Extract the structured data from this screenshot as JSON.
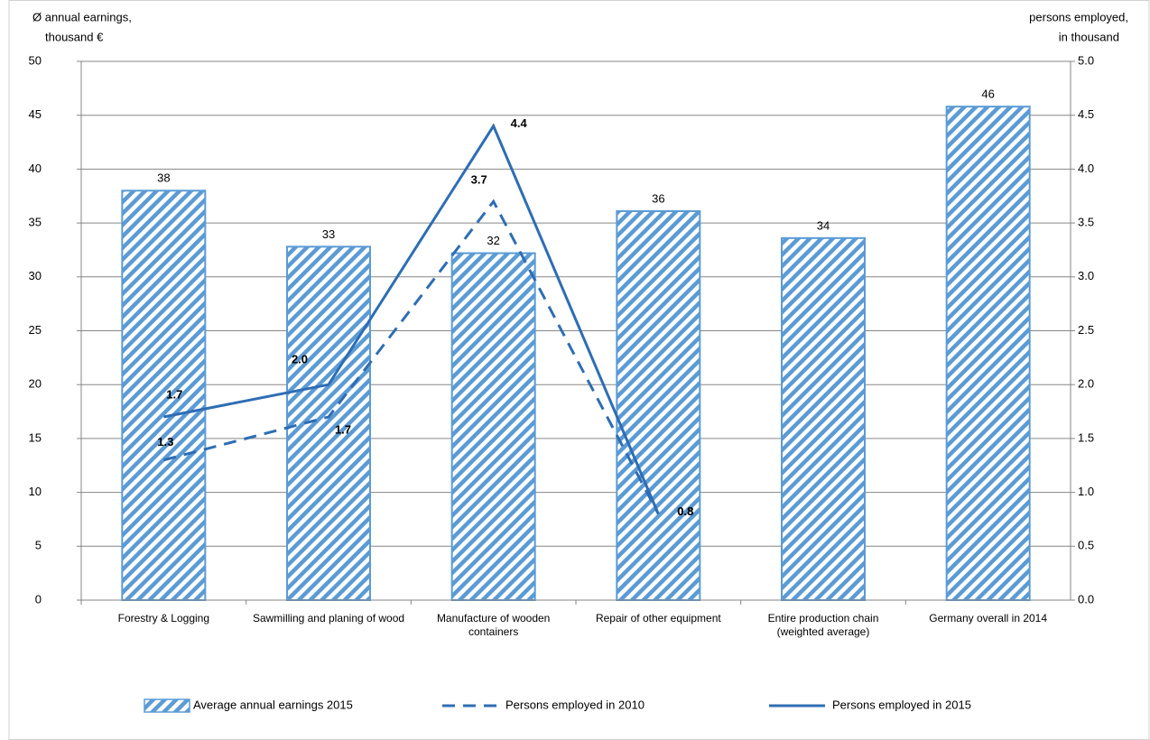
{
  "chart_data": {
    "type": "bar_line",
    "y_label": [
      "Ø annual earnings,",
      "thousand €"
    ],
    "y2_label": [
      "persons employed,",
      "in thousand"
    ],
    "categories": [
      "Forestry & Logging",
      "Sawmilling and planing of wood",
      "Manufacture of wooden containers",
      "Repair of other equipment",
      "Entire production chain (weighted average)",
      "Germany overall in 2014"
    ],
    "series": [
      {
        "name": "Average annual earnings 2015",
        "type": "bar",
        "color": "#5b9bd5",
        "values": [
          38,
          32.8,
          32.2,
          36.1,
          33.6,
          45.8
        ],
        "value_labels": [
          "38",
          "33",
          "32",
          "36",
          "34",
          "46"
        ]
      },
      {
        "name": "Persons employed in 2010",
        "type": "line",
        "style": "dashed",
        "axis": "y2",
        "color": "#2e6db4",
        "values": [
          1.3,
          1.7,
          3.7,
          0.8,
          null,
          null
        ],
        "value_labels": [
          "1.3",
          "1.7",
          "3.7",
          "0.8",
          null,
          null
        ]
      },
      {
        "name": "Persons employed in 2015",
        "type": "line",
        "style": "solid",
        "axis": "y2",
        "color": "#2e6db4",
        "values": [
          1.7,
          2.0,
          4.4,
          0.8,
          null,
          null
        ],
        "value_labels": [
          "1.7",
          "2.0",
          "4.4",
          "0.8",
          null,
          null
        ]
      }
    ],
    "ylim": [
      0,
      50
    ],
    "yticks": [
      0,
      5,
      10,
      15,
      20,
      25,
      30,
      35,
      40,
      45,
      50
    ],
    "y2lim": [
      0,
      5
    ],
    "y2ticks": [
      {
        "value": 0,
        "label": "0.0"
      },
      0.5,
      {
        "value": 1,
        "label": "1.0"
      },
      1.5,
      {
        "value": 2,
        "label": "2.0"
      },
      2.5,
      {
        "value": 3,
        "label": "3.0"
      },
      3.5,
      {
        "value": 4,
        "label": "4.0"
      },
      4.5,
      {
        "value": 5,
        "label": "5.0"
      }
    ],
    "grid": true,
    "legend": "bottom"
  }
}
